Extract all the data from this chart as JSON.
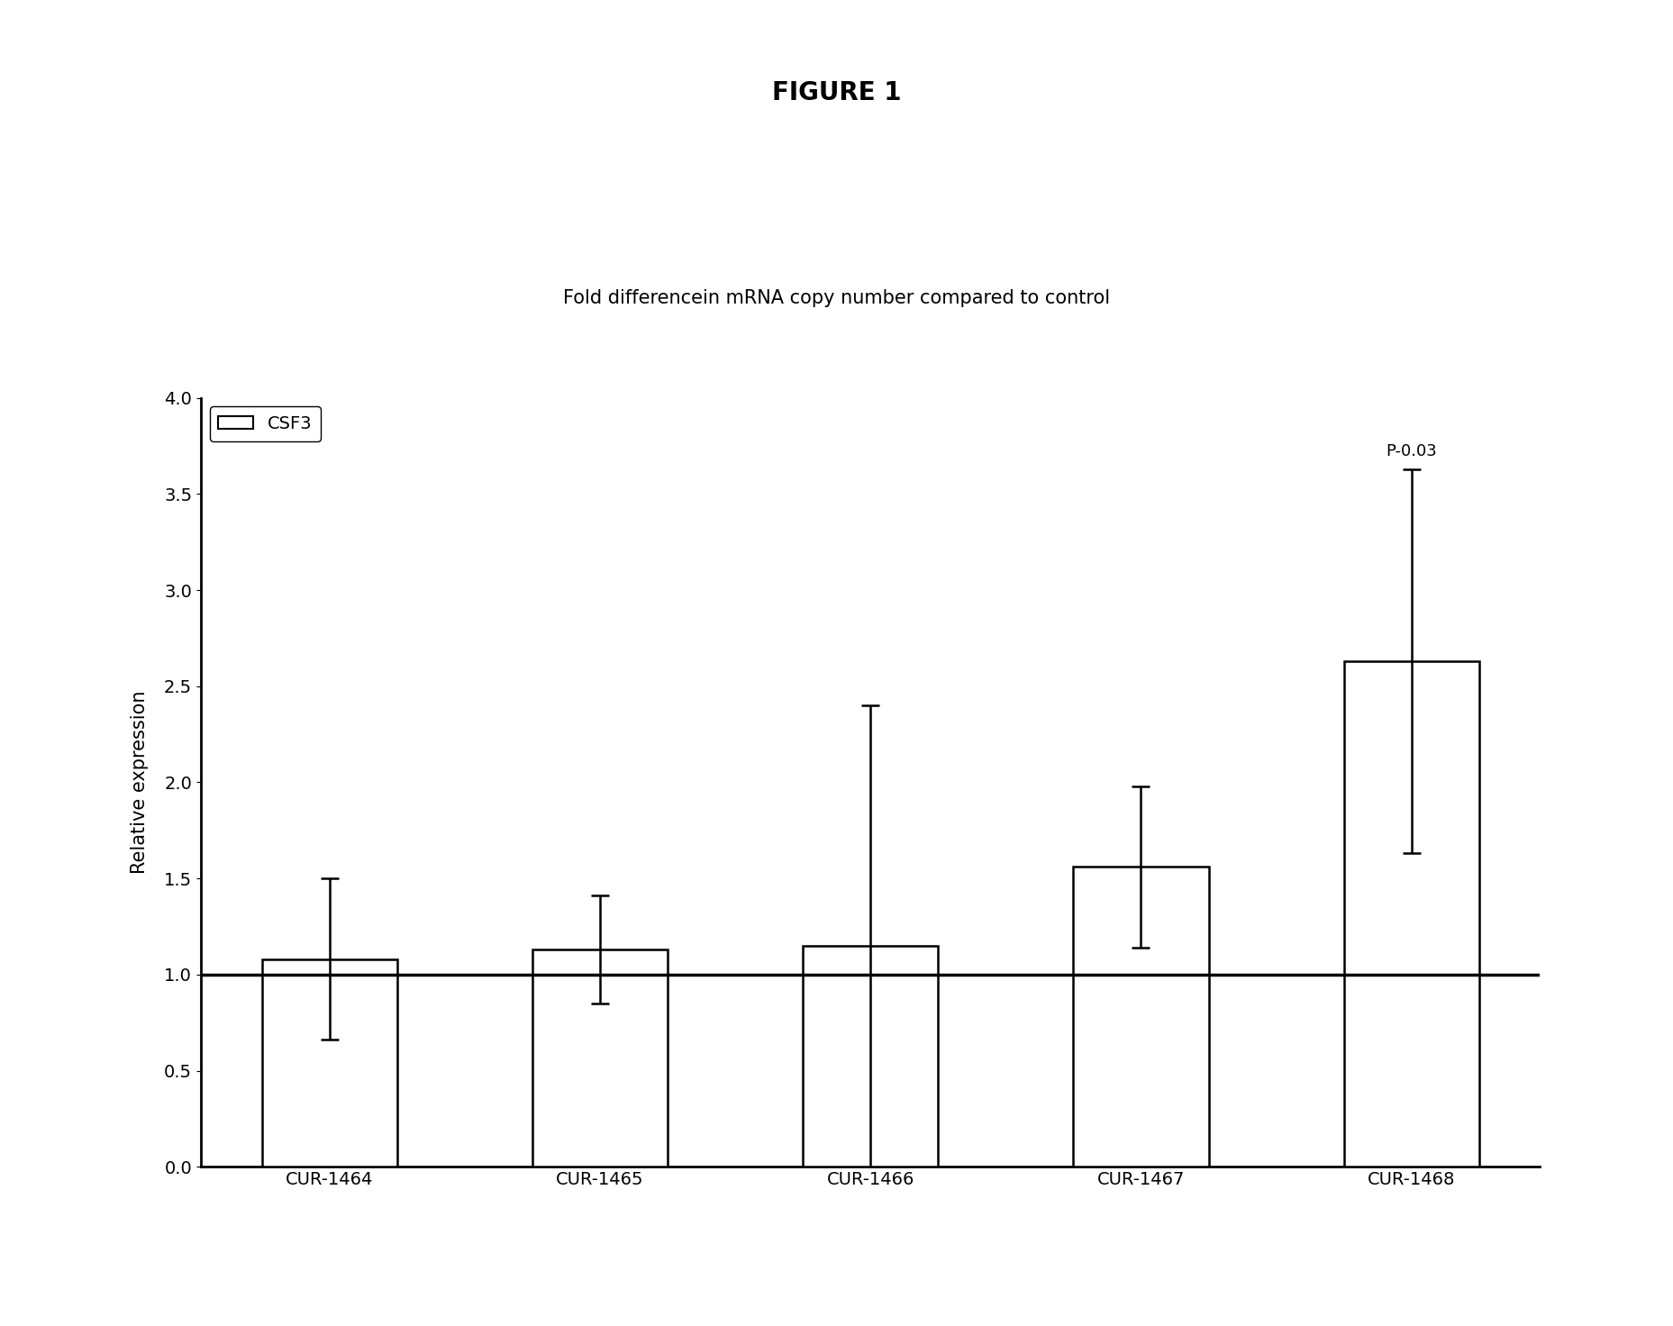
{
  "title": "FIGURE 1",
  "subtitle": "Fold differencein mRNA copy number compared to control",
  "categories": [
    "CUR-1464",
    "CUR-1465",
    "CUR-1466",
    "CUR-1467",
    "CUR-1468"
  ],
  "values": [
    1.08,
    1.13,
    1.15,
    1.56,
    2.63
  ],
  "errors": [
    0.42,
    0.28,
    1.25,
    0.42,
    1.0
  ],
  "ylabel": "Relative expression",
  "ylim": [
    0,
    4
  ],
  "yticks": [
    0,
    0.5,
    1,
    1.5,
    2,
    2.5,
    3,
    3.5,
    4
  ],
  "bar_color": "#ffffff",
  "bar_edgecolor": "#000000",
  "bar_width": 0.5,
  "legend_label": "CSF3",
  "annotation": "P-0.03",
  "hline_y": 1.0,
  "background_color": "#ffffff",
  "title_fontsize": 20,
  "subtitle_fontsize": 15,
  "tick_fontsize": 14,
  "ylabel_fontsize": 15,
  "legend_fontsize": 14
}
